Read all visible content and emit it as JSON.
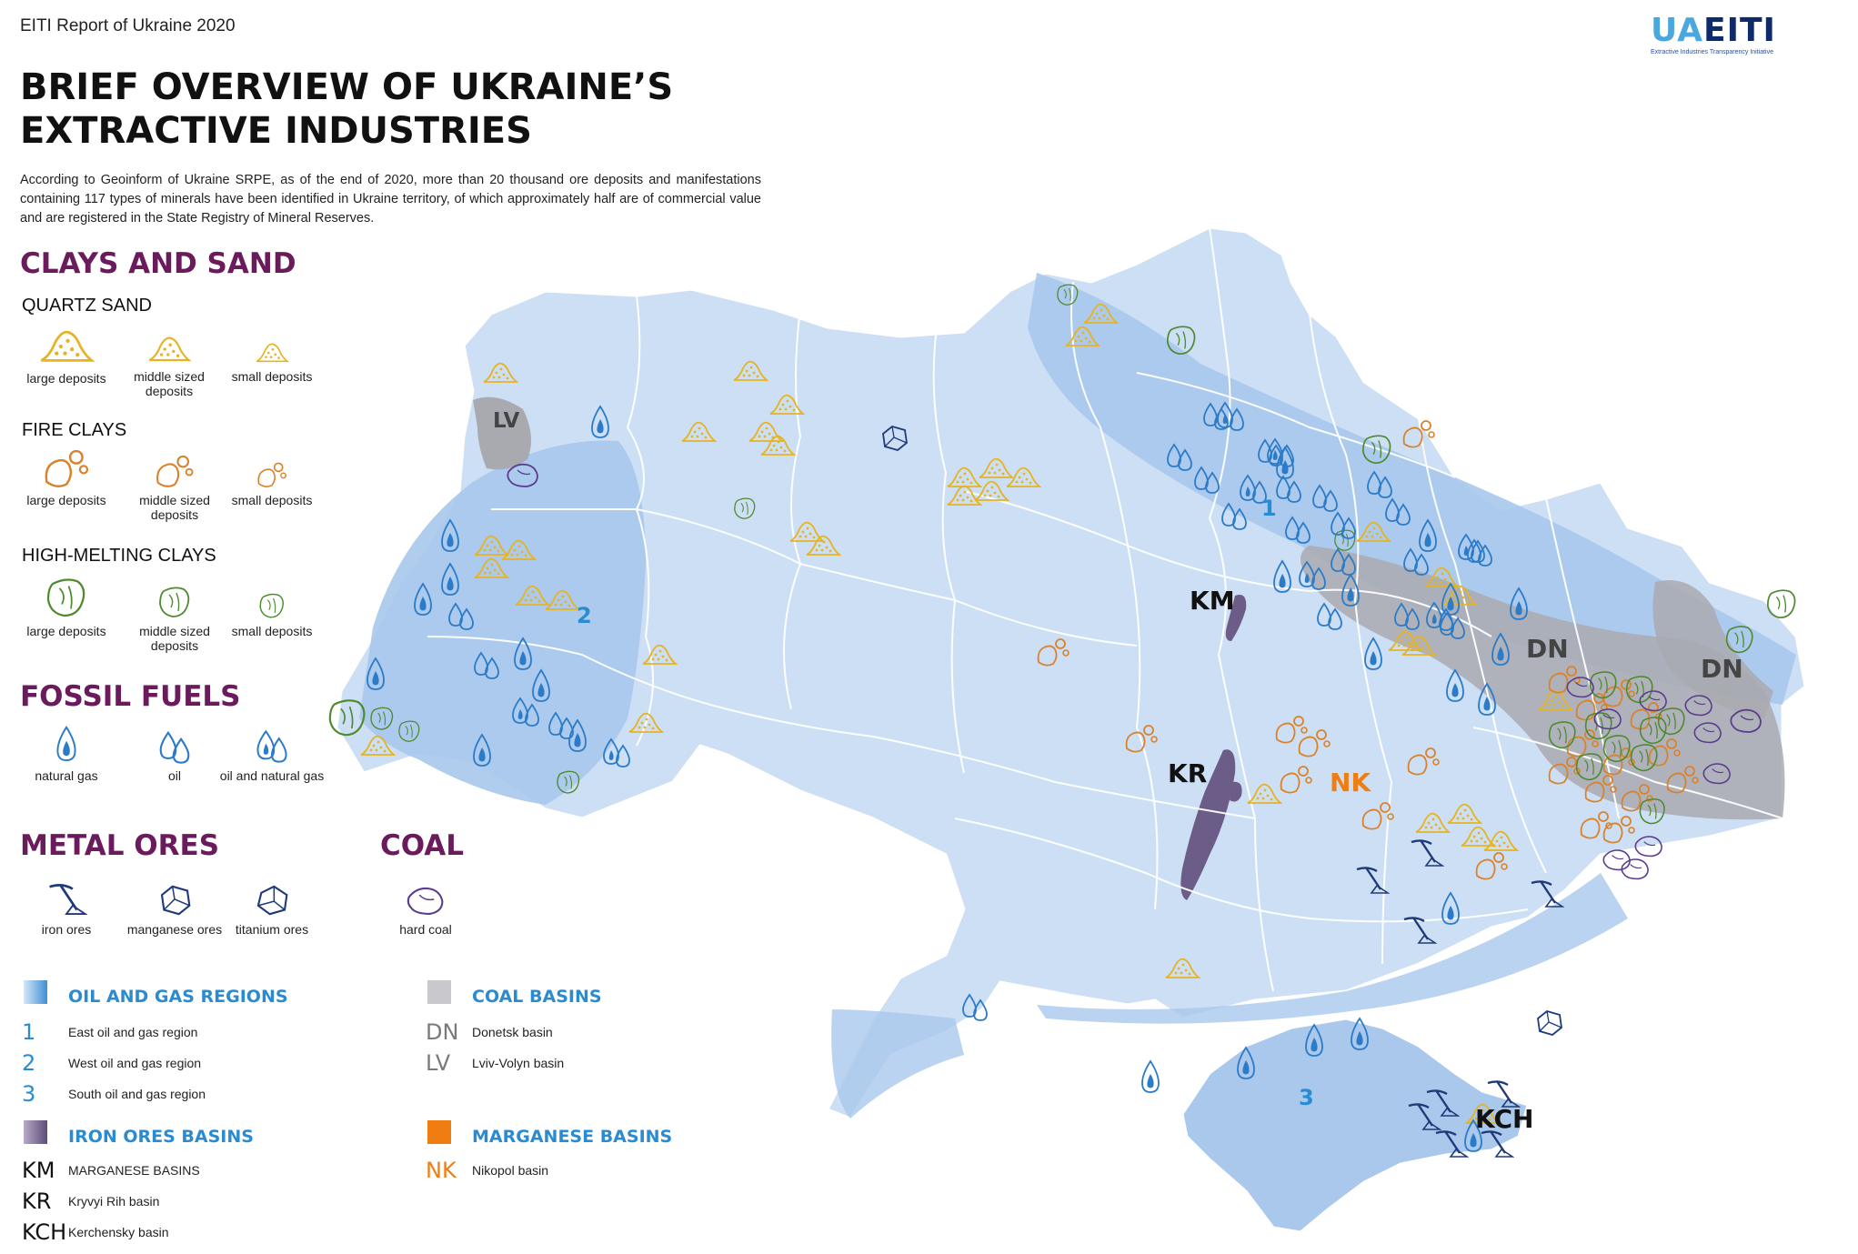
{
  "header": {
    "report_name": "EITI Report of Ukraine 2020",
    "logo_mark_ua": "UA",
    "logo_mark_eiti": "EITI",
    "logo_tagline": "Extractive Industries Transparency Initiative"
  },
  "title": {
    "line1": "BRIEF OVERVIEW OF UKRAINE’S",
    "line2": "EXTRACTIVE INDUSTRIES"
  },
  "intro": "According to Geoinform of Ukraine SRPE, as of the end of 2020, more than 20 thousand ore deposits and manifestations containing 117 types of minerals have been identified in Ukraine territory, of which approximately half are of commercial value and are registered in the State Registry of Mineral Reserves.",
  "legend": {
    "clays_sand": {
      "title": "CLAYS AND SAND",
      "quartz_sand": {
        "title": "QUARTZ SAND",
        "large": "large deposits",
        "middle": "middle sized deposits",
        "small": "small deposits"
      },
      "fire_clays": {
        "title": "FIRE CLAYS",
        "large": "large deposits",
        "middle": "middle sized deposits",
        "small": "small deposits"
      },
      "high_melting": {
        "title": "HIGH-MELTING CLAYS",
        "large": "large deposits",
        "middle": "middle sized deposits",
        "small": "small deposits"
      }
    },
    "fossil_fuels": {
      "title": "FOSSIL FUELS",
      "gas": "natural gas",
      "oil": "oil",
      "oil_gas": "oil and natural gas"
    },
    "metal_ores": {
      "title": "METAL ORES",
      "iron": "iron ores",
      "manganese": "manganese ores",
      "titanium": "titanium ores"
    },
    "coal": {
      "title": "COAL",
      "hard": "hard coal"
    }
  },
  "keys": {
    "oil_gas": {
      "title": "OIL AND GAS REGIONS",
      "items": [
        {
          "code": "1",
          "label": "East oil and gas region"
        },
        {
          "code": "2",
          "label": "West oil and gas region"
        },
        {
          "code": "3",
          "label": "South oil and gas region"
        }
      ]
    },
    "coal_basins": {
      "title": "COAL BASINS",
      "items": [
        {
          "code": "DN",
          "label": "Donetsk basin"
        },
        {
          "code": "LV",
          "label": "Lviv-Volyn basin"
        }
      ]
    },
    "iron_basins": {
      "title": "IRON ORES BASINS",
      "items": [
        {
          "code": "KM",
          "label": "MARGANESE BASINS"
        },
        {
          "code": "KR",
          "label": "Kryvyi Rih basin"
        },
        {
          "code": "KCH",
          "label": "Kerchensky basin"
        }
      ]
    },
    "manganese_basins": {
      "title": "MARGANESE BASINS",
      "items": [
        {
          "code": "NK",
          "label": "Nikopol basin"
        }
      ]
    }
  },
  "map_labels": {
    "lv": "LV",
    "km": "KM",
    "kr": "KR",
    "nk": "NK",
    "dn1": "DN",
    "dn2": "DN",
    "kch": "KCH",
    "r1": "1",
    "r2": "2",
    "r3": "3"
  },
  "colors": {
    "title_purple": "#6b1a5c",
    "key_blue": "#2b8bd1",
    "nk_orange": "#f07d12",
    "sand": "#e6b422",
    "fire_clay": "#d9822b",
    "high_melt": "#4e8a2e",
    "fuel_blue": "#2b7bc9",
    "metal_navy": "#1f3a7a",
    "coal_purple": "#5b3c8f",
    "map_light": "#cddff4",
    "map_mid": "#a9c8ec",
    "coal_grey": "#a9aab0"
  }
}
